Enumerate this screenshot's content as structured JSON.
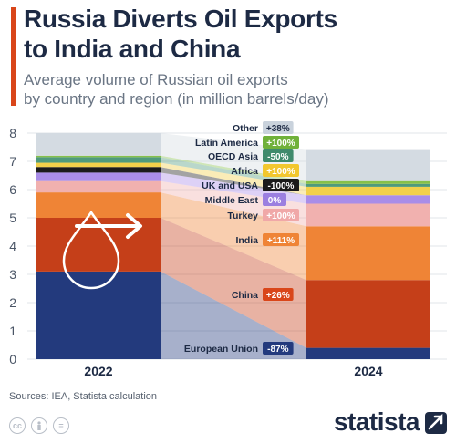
{
  "header": {
    "title_line1": "Russia Diverts Oil Exports",
    "title_line2": "to India and China",
    "subtitle_line1": "Average volume of Russian oil exports",
    "subtitle_line2": "by country and region (in million barrels/day)",
    "accent_color": "#d9461a"
  },
  "footer": {
    "source": "Sources: IEA, Statista calculation",
    "brand": "statista",
    "license_icons": [
      "cc-icon",
      "person-icon",
      "equals-icon"
    ]
  },
  "chart_data": {
    "type": "bar",
    "stacked": true,
    "categories": [
      "2022",
      "2024"
    ],
    "ylim": [
      0,
      8
    ],
    "yticks": [
      0,
      1,
      2,
      3,
      4,
      5,
      6,
      7,
      8
    ],
    "grid": true,
    "series": [
      {
        "name": "European Union",
        "values": [
          3.1,
          0.4
        ],
        "change": "-87%",
        "color": "#233a7d",
        "badge_color": "#233a7d"
      },
      {
        "name": "China",
        "values": [
          1.9,
          2.4
        ],
        "change": "+26%",
        "color": "#c53f19",
        "badge_color": "#d9461a"
      },
      {
        "name": "India",
        "values": [
          0.9,
          1.9
        ],
        "change": "+111%",
        "color": "#ef8436",
        "badge_color": "#ef8436"
      },
      {
        "name": "Turkey",
        "values": [
          0.4,
          0.8
        ],
        "change": "+100%",
        "color": "#f1b1af",
        "badge_color": "#f0a8a8"
      },
      {
        "name": "Middle East",
        "values": [
          0.3,
          0.3
        ],
        "change": "0%",
        "color": "#a98de8",
        "badge_color": "#9b7fe0"
      },
      {
        "name": "UK and USA",
        "values": [
          0.2,
          0.0
        ],
        "change": "-100%",
        "color": "#1a1a1a",
        "badge_color": "#1a1a1a"
      },
      {
        "name": "Africa",
        "values": [
          0.15,
          0.3
        ],
        "change": "+100%",
        "color": "#f2d04a",
        "badge_color": "#f2c72e"
      },
      {
        "name": "OECD Asia",
        "values": [
          0.2,
          0.1
        ],
        "change": "-50%",
        "color": "#4f9a7c",
        "badge_color": "#3f8a6c"
      },
      {
        "name": "Latin America",
        "values": [
          0.05,
          0.1
        ],
        "change": "+100%",
        "color": "#86c04a",
        "badge_color": "#70b13a"
      },
      {
        "name": "Other",
        "values": [
          0.8,
          1.1
        ],
        "change": "+38%",
        "color": "#d4dbe2",
        "badge_color": "#c9d2dc"
      }
    ]
  }
}
